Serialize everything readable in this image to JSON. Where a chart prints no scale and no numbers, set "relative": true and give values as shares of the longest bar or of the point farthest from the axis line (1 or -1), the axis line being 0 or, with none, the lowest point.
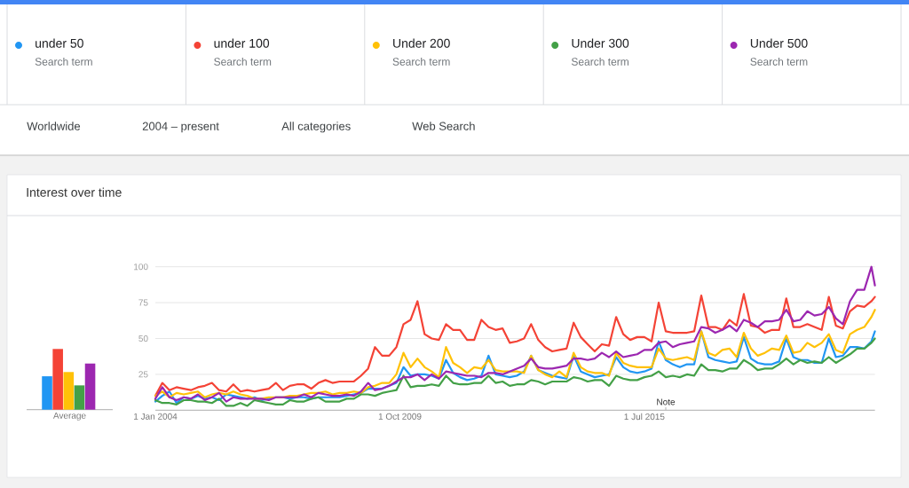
{
  "chart_data": [
    {
      "type": "line",
      "title": "Interest over time",
      "x": [
        "2004-01",
        "2004-03",
        "2004-05",
        "2004-07",
        "2004-09",
        "2004-11",
        "2005-01",
        "2005-03",
        "2005-05",
        "2005-07",
        "2005-09",
        "2005-11",
        "2006-01",
        "2006-03",
        "2006-05",
        "2006-07",
        "2006-09",
        "2006-11",
        "2007-01",
        "2007-03",
        "2007-05",
        "2007-07",
        "2007-09",
        "2007-11",
        "2008-01",
        "2008-03",
        "2008-05",
        "2008-07",
        "2008-09",
        "2008-11",
        "2009-01",
        "2009-03",
        "2009-05",
        "2009-07",
        "2009-09",
        "2009-11",
        "2010-01",
        "2010-03",
        "2010-05",
        "2010-07",
        "2010-09",
        "2010-11",
        "2011-01",
        "2011-03",
        "2011-05",
        "2011-07",
        "2011-09",
        "2011-11",
        "2012-01",
        "2012-03",
        "2012-05",
        "2012-07",
        "2012-09",
        "2012-11",
        "2013-01",
        "2013-03",
        "2013-05",
        "2013-07",
        "2013-09",
        "2013-11",
        "2014-01",
        "2014-03",
        "2014-05",
        "2014-07",
        "2014-09",
        "2014-11",
        "2015-01",
        "2015-03",
        "2015-05",
        "2015-07",
        "2015-09",
        "2015-11",
        "2016-01",
        "2016-03",
        "2016-05",
        "2016-07",
        "2016-09",
        "2016-11",
        "2017-01",
        "2017-03",
        "2017-05",
        "2017-07",
        "2017-09",
        "2017-11",
        "2018-01",
        "2018-03",
        "2018-05",
        "2018-07",
        "2018-09",
        "2018-11",
        "2019-01",
        "2019-03",
        "2019-05",
        "2019-07",
        "2019-09",
        "2019-11",
        "2020-01",
        "2020-03",
        "2020-05",
        "2020-07",
        "2020-09",
        "2020-11",
        "2020-12"
      ],
      "series": [
        {
          "name": "under 50",
          "color": "#2196f3",
          "values": [
            6,
            10,
            13,
            5,
            9,
            8,
            10,
            8,
            9,
            7,
            11,
            10,
            9,
            8,
            9,
            7,
            8,
            9,
            9,
            8,
            9,
            9,
            8,
            9,
            9,
            9,
            9,
            10,
            11,
            12,
            15,
            15,
            15,
            17,
            19,
            30,
            24,
            25,
            25,
            24,
            22,
            35,
            26,
            23,
            21,
            22,
            24,
            38,
            25,
            24,
            23,
            24,
            27,
            38,
            28,
            26,
            24,
            23,
            22,
            38,
            27,
            25,
            23,
            24,
            25,
            37,
            30,
            27,
            26,
            27,
            29,
            48,
            35,
            32,
            30,
            32,
            32,
            55,
            37,
            35,
            34,
            33,
            34,
            51,
            36,
            33,
            32,
            32,
            34,
            50,
            37,
            35,
            35,
            33,
            33,
            50,
            37,
            38,
            44,
            44,
            43,
            48,
            55
          ]
        },
        {
          "name": "under 100",
          "color": "#f44336",
          "values": [
            10,
            19,
            14,
            16,
            15,
            14,
            16,
            17,
            19,
            14,
            13,
            18,
            13,
            14,
            13,
            14,
            15,
            19,
            14,
            17,
            18,
            18,
            15,
            19,
            21,
            19,
            20,
            20,
            20,
            24,
            29,
            44,
            38,
            38,
            44,
            60,
            63,
            76,
            53,
            50,
            49,
            60,
            56,
            56,
            49,
            49,
            63,
            58,
            56,
            57,
            47,
            48,
            50,
            60,
            49,
            44,
            41,
            42,
            43,
            61,
            51,
            46,
            41,
            46,
            45,
            65,
            53,
            49,
            51,
            51,
            48,
            75,
            55,
            54,
            54,
            54,
            55,
            80,
            58,
            58,
            56,
            63,
            59,
            81,
            59,
            58,
            54,
            56,
            56,
            78,
            58,
            58,
            60,
            58,
            56,
            79,
            59,
            57,
            69,
            73,
            72,
            76,
            79
          ]
        },
        {
          "name": "Under 200",
          "color": "#ffc107",
          "values": [
            10,
            13,
            9,
            12,
            11,
            12,
            13,
            9,
            11,
            12,
            11,
            13,
            11,
            10,
            8,
            8,
            9,
            9,
            9,
            10,
            10,
            11,
            12,
            12,
            13,
            11,
            12,
            12,
            13,
            12,
            16,
            17,
            19,
            19,
            25,
            40,
            30,
            36,
            30,
            27,
            23,
            44,
            33,
            30,
            26,
            30,
            29,
            35,
            28,
            27,
            27,
            27,
            26,
            38,
            28,
            25,
            23,
            27,
            23,
            40,
            30,
            27,
            26,
            26,
            24,
            40,
            33,
            31,
            30,
            30,
            30,
            43,
            36,
            35,
            36,
            37,
            35,
            55,
            40,
            38,
            42,
            43,
            37,
            54,
            43,
            38,
            40,
            43,
            42,
            52,
            40,
            41,
            47,
            44,
            47,
            53,
            42,
            40,
            53,
            56,
            58,
            65,
            70
          ]
        },
        {
          "name": "Under 300",
          "color": "#43a047",
          "values": [
            7,
            5,
            5,
            4,
            7,
            7,
            6,
            6,
            5,
            8,
            3,
            3,
            5,
            3,
            7,
            6,
            5,
            4,
            4,
            7,
            6,
            6,
            8,
            9,
            6,
            6,
            6,
            8,
            8,
            11,
            11,
            10,
            12,
            13,
            14,
            24,
            16,
            17,
            17,
            18,
            17,
            24,
            19,
            18,
            18,
            19,
            19,
            24,
            19,
            20,
            17,
            18,
            18,
            21,
            20,
            18,
            20,
            20,
            20,
            23,
            22,
            20,
            21,
            21,
            17,
            24,
            22,
            21,
            21,
            23,
            24,
            27,
            23,
            24,
            23,
            25,
            24,
            32,
            28,
            28,
            27,
            29,
            29,
            35,
            32,
            28,
            29,
            29,
            32,
            36,
            32,
            35,
            33,
            34,
            33,
            37,
            33,
            36,
            39,
            43,
            43,
            47,
            50
          ]
        },
        {
          "name": "Under 500",
          "color": "#9c27b0",
          "values": [
            8,
            16,
            9,
            7,
            9,
            8,
            11,
            7,
            9,
            12,
            6,
            9,
            8,
            8,
            8,
            8,
            7,
            9,
            9,
            9,
            9,
            11,
            9,
            12,
            11,
            10,
            10,
            11,
            10,
            13,
            19,
            14,
            15,
            17,
            20,
            23,
            23,
            25,
            21,
            25,
            22,
            27,
            26,
            25,
            24,
            24,
            23,
            26,
            26,
            25,
            27,
            29,
            31,
            36,
            30,
            29,
            29,
            30,
            31,
            36,
            36,
            35,
            36,
            40,
            37,
            41,
            37,
            38,
            39,
            42,
            42,
            47,
            48,
            44,
            46,
            47,
            48,
            58,
            57,
            54,
            56,
            59,
            55,
            63,
            61,
            58,
            62,
            62,
            63,
            70,
            62,
            63,
            69,
            66,
            67,
            72,
            64,
            60,
            76,
            84,
            84,
            100,
            87
          ]
        }
      ],
      "xlim": [
        "2004-01",
        "2020-12"
      ],
      "xticks": [
        {
          "value": "2004-01-01",
          "label": "1 Jan 2004"
        },
        {
          "value": "2009-10-01",
          "label": "1 Oct 2009"
        },
        {
          "value": "2015-07-01",
          "label": "1 Jul 2015"
        }
      ],
      "ylim": [
        0,
        100
      ],
      "yticks": [
        25,
        50,
        75,
        100
      ],
      "grid": "y",
      "legend": "top",
      "annotations": [
        "Search term",
        "Search term",
        "Search term",
        "Search term",
        "Search term",
        "Worldwide",
        "2004 – present",
        "All categories",
        "Web Search",
        "Note"
      ]
    },
    {
      "type": "bar",
      "relative": true,
      "xlabel": "Average",
      "categories": [
        null,
        null,
        null,
        null,
        null
      ],
      "values": [
        0.55,
        1,
        0.62,
        0.4,
        0.76
      ],
      "colors": [
        "#2196f3",
        "#f44336",
        "#ffc107",
        "#43a047",
        "#9c27b0"
      ]
    }
  ]
}
